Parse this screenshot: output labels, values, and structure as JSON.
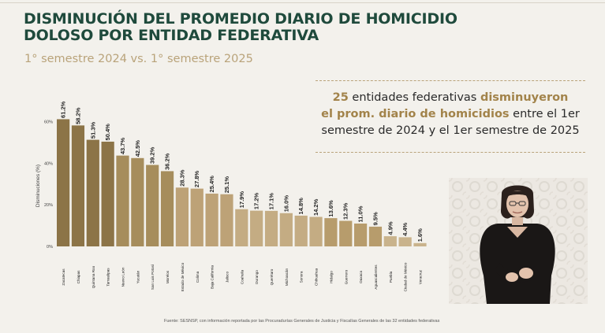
{
  "header": {
    "title_line1": "DISMINUCIÓN DEL PROMEDIO DIARIO DE HOMICIDIO",
    "title_line2": "DOLOSO POR ENTIDAD FEDERATIVA",
    "subtitle": "1° semestre 2024 vs. 1° semestre 2025"
  },
  "callout": {
    "count": "25",
    "text1": " entidades federativas ",
    "hl1": "disminuyeron",
    "hl2": "el prom. diario de homicidios",
    "text2": " entre el 1er",
    "text3": "semestre de 2024 y el 1er semestre de 2025"
  },
  "chart_data": {
    "type": "bar",
    "ylabel": "Disminuciones (%)",
    "ylim": [
      0,
      70
    ],
    "yticks": [
      0,
      20,
      40,
      60
    ],
    "yticklabels": [
      "0%",
      "20%",
      "40%",
      "60%"
    ],
    "categories": [
      "Zacatecas",
      "Chiapas",
      "Quintana Roo",
      "Tamaulipas",
      "Nuevo León",
      "Yucatán",
      "San Luis Potosí",
      "Morelos",
      "Estado de México",
      "Colima",
      "Baja California",
      "Jalisco",
      "Coahuila",
      "Durango",
      "Querétaro",
      "Michoacán",
      "Sonora",
      "Chihuahua",
      "Hidalgo",
      "Guerrero",
      "Oaxaca",
      "Aguascalientes",
      "Puebla",
      "Ciudad de México",
      "Veracruz"
    ],
    "values": [
      61.2,
      58.2,
      51.3,
      50.4,
      43.7,
      42.5,
      39.2,
      36.2,
      28.3,
      27.8,
      25.4,
      25.1,
      17.9,
      17.2,
      17.1,
      16.0,
      14.8,
      14.2,
      13.6,
      12.3,
      11.0,
      9.5,
      4.9,
      4.4,
      1.6
    ],
    "labels": [
      "61.2%",
      "58.2%",
      "51.3%",
      "50.4%",
      "43.7%",
      "42.5%",
      "39.2%",
      "36.2%",
      "28.3%",
      "27.8%",
      "25.4%",
      "25.1%",
      "17.9%",
      "17.2%",
      "17.1%",
      "16.0%",
      "14.8%",
      "14.2%",
      "13.6%",
      "12.3%",
      "11.0%",
      "9.5%",
      "4.9%",
      "4.4%",
      "1.6%"
    ],
    "colors": [
      "#8c7447",
      "#8c7447",
      "#8c7447",
      "#8c7447",
      "#a68d5c",
      "#a68d5c",
      "#a68d5c",
      "#a68d5c",
      "#bda277",
      "#bda277",
      "#bda277",
      "#bda277",
      "#c4ac83",
      "#c4ac83",
      "#c4ac83",
      "#c4ac83",
      "#c4ac83",
      "#c4ac83",
      "#b79c6c",
      "#b79c6c",
      "#b79c6c",
      "#b79c6c",
      "#c9b38c",
      "#c9b38c",
      "#c9b38c"
    ],
    "grid": false
  },
  "source": "Fuente: SESNSP, con información reportada por las Procuradurías Generales de Justicia y Fiscalías Generales de las 32 entidades federativas"
}
